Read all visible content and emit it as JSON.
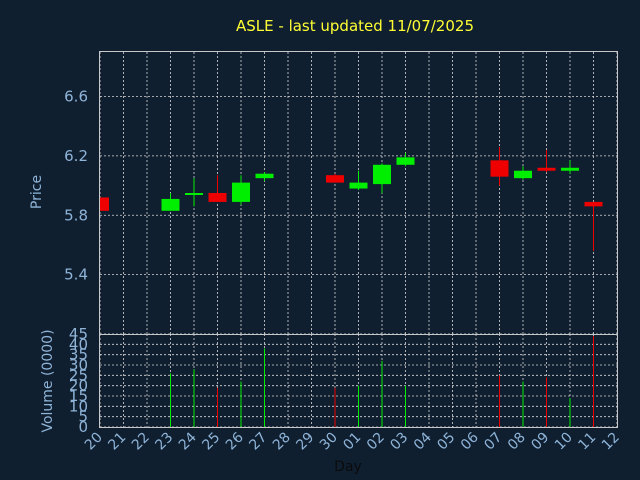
{
  "title": "ASLE - last updated 11/07/2025",
  "chart_data": {
    "type": "candlestick",
    "title": "ASLE - last updated 11/07/2025",
    "xlabel": "Day",
    "ylabel": "Price",
    "volume_label": "Volume (0000)",
    "x_ticks": [
      "20",
      "21",
      "22",
      "23",
      "24",
      "25",
      "26",
      "27",
      "28",
      "29",
      "30",
      "01",
      "02",
      "03",
      "04",
      "05",
      "06",
      "07",
      "08",
      "09",
      "10",
      "11",
      "12"
    ],
    "price_ylim": [
      5.0,
      6.9
    ],
    "price_ticks": [
      "5.4",
      "5.8",
      "6.2",
      "6.6"
    ],
    "volume_ylim": [
      0,
      45
    ],
    "volume_ticks": [
      "0",
      "5",
      "10",
      "15",
      "20",
      "25",
      "30",
      "35",
      "40",
      "45"
    ],
    "grid": true,
    "candles": [
      {
        "day": "20",
        "open": 5.92,
        "high": 5.92,
        "low": 5.83,
        "close": 5.83,
        "volume": 0
      },
      {
        "day": "23",
        "open": 5.83,
        "high": 5.95,
        "low": 5.83,
        "close": 5.91,
        "volume": 26
      },
      {
        "day": "24",
        "open": 5.94,
        "high": 6.05,
        "low": 5.86,
        "close": 5.95,
        "volume": 28
      },
      {
        "day": "25",
        "open": 5.95,
        "high": 6.07,
        "low": 5.89,
        "close": 5.89,
        "volume": 19
      },
      {
        "day": "26",
        "open": 5.89,
        "high": 6.07,
        "low": 5.87,
        "close": 6.02,
        "volume": 22
      },
      {
        "day": "27",
        "open": 6.05,
        "high": 6.09,
        "low": 6.03,
        "close": 6.08,
        "volume": 38
      },
      {
        "day": "30",
        "open": 6.07,
        "high": 6.08,
        "low": 6.02,
        "close": 6.02,
        "volume": 19
      },
      {
        "day": "01",
        "open": 5.98,
        "high": 6.1,
        "low": 5.97,
        "close": 6.02,
        "volume": 20
      },
      {
        "day": "02",
        "open": 6.01,
        "high": 6.15,
        "low": 5.95,
        "close": 6.14,
        "volume": 32
      },
      {
        "day": "03",
        "open": 6.14,
        "high": 6.22,
        "low": 6.13,
        "close": 6.19,
        "volume": 20
      },
      {
        "day": "07",
        "open": 6.17,
        "high": 6.26,
        "low": 6.0,
        "close": 6.06,
        "volume": 25
      },
      {
        "day": "08",
        "open": 6.05,
        "high": 6.13,
        "low": 6.04,
        "close": 6.1,
        "volume": 22
      },
      {
        "day": "09",
        "open": 6.12,
        "high": 6.24,
        "low": 6.09,
        "close": 6.1,
        "volume": 24
      },
      {
        "day": "10",
        "open": 6.1,
        "high": 6.17,
        "low": 6.08,
        "close": 6.12,
        "volume": 14
      },
      {
        "day": "11",
        "open": 5.89,
        "high": 5.89,
        "low": 5.56,
        "close": 5.86,
        "volume": 44
      }
    ],
    "up_color": "#00ee00",
    "down_color": "#ee0000",
    "title_color": "#ffff33",
    "background": "#0f1f30"
  }
}
